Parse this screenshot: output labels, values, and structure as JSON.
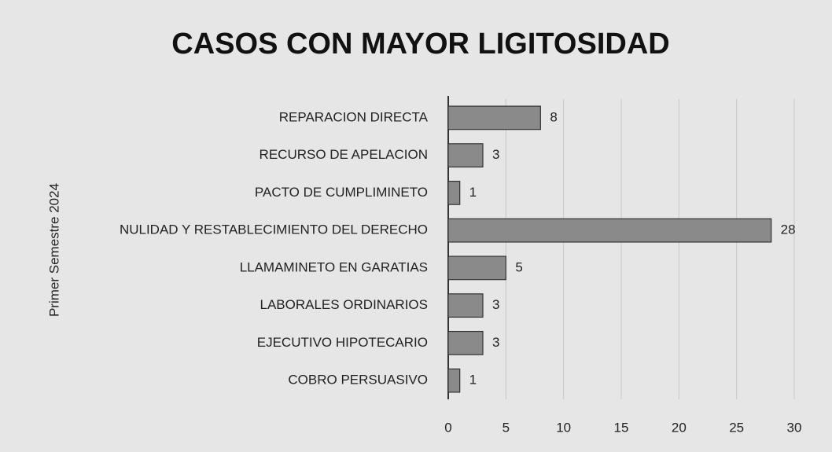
{
  "chart_data": {
    "type": "bar",
    "orientation": "horizontal",
    "title": "CASOS CON MAYOR LIGITOSIDAD",
    "y_label": "Primer Semestre 2024",
    "categories": [
      "REPARACION DIRECTA",
      "RECURSO DE APELACION",
      "PACTO DE CUMPLIMINETO",
      "NULIDAD Y RESTABLECIMIENTO DEL DERECHO",
      "LLAMAMINETO EN GARATIAS",
      "LABORALES ORDINARIOS",
      "EJECUTIVO HIPOTECARIO",
      "COBRO PERSUASIVO"
    ],
    "values": [
      8,
      3,
      1,
      28,
      5,
      3,
      3,
      1
    ],
    "color": "#8a8a8a",
    "xlim": [
      0,
      30
    ],
    "xticks": [
      0,
      5,
      10,
      15,
      20,
      25,
      30
    ],
    "grid": true
  }
}
